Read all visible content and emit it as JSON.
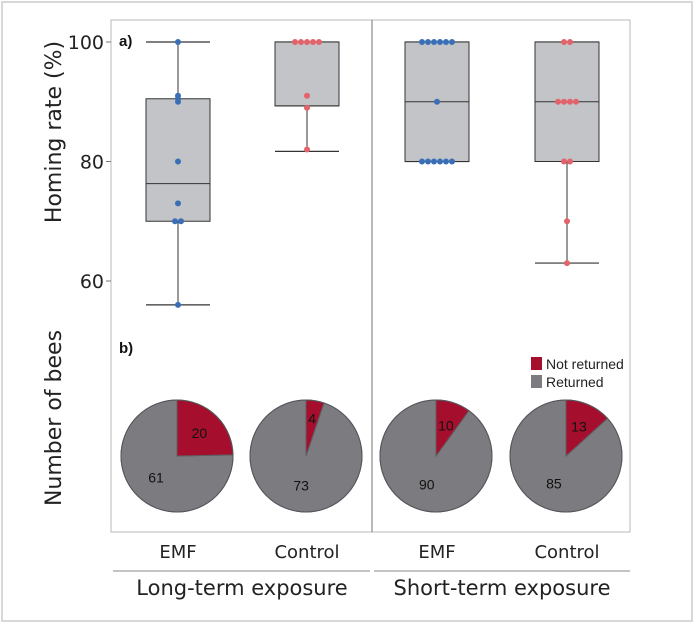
{
  "chart_data": [
    {
      "panel": "a)",
      "type": "box",
      "ylabel": "Homing rate (%)",
      "yticks": [
        60,
        80,
        100
      ],
      "ylim": [
        53,
        103
      ],
      "categories": [
        "EMF",
        "Control",
        "EMF",
        "Control"
      ],
      "groups": [
        "Long-term exposure",
        "Short-term exposure"
      ],
      "boxes": [
        {
          "group": "Long-term exposure",
          "category": "EMF",
          "whisker_low": 56,
          "q1": 70,
          "median": 76.3,
          "q3": 90.5,
          "whisker_high": 100,
          "color": "#3a6fb6",
          "points": [
            100,
            91,
            90.5,
            90,
            80,
            73,
            70,
            70,
            56
          ]
        },
        {
          "group": "Long-term exposure",
          "category": "Control",
          "whisker_low": 81.7,
          "q1": 89.3,
          "median": 89.3,
          "q3": 100,
          "whisker_high": 100,
          "color": "#e2636b",
          "points": [
            100,
            100,
            100,
            100,
            100,
            91,
            89,
            82
          ]
        },
        {
          "group": "Short-term exposure",
          "category": "EMF",
          "whisker_low": 80,
          "q1": 80,
          "median": 90,
          "q3": 100,
          "whisker_high": 100,
          "color": "#3a6fb6",
          "points": [
            100,
            100,
            100,
            100,
            100,
            100,
            90,
            80,
            80,
            80,
            80,
            80,
            80
          ]
        },
        {
          "group": "Short-term exposure",
          "category": "Control",
          "whisker_low": 63,
          "q1": 80,
          "median": 90,
          "q3": 100,
          "whisker_high": 100,
          "color": "#e2636b",
          "points": [
            100,
            100,
            90,
            90,
            90,
            90,
            80,
            80,
            70,
            63
          ]
        }
      ],
      "box_fill": "#c3c4c8"
    },
    {
      "panel": "b)",
      "type": "pie",
      "ylabel": "Number of bees",
      "legend": [
        {
          "label": "Not returned",
          "color": "#a50f2d"
        },
        {
          "label": "Returned",
          "color": "#7c7c80"
        }
      ],
      "legend_position": "top-right",
      "pies": [
        {
          "group": "Long-term exposure",
          "category": "EMF",
          "not_returned": 20,
          "returned": 61
        },
        {
          "group": "Long-term exposure",
          "category": "Control",
          "not_returned": 4,
          "returned": 73
        },
        {
          "group": "Short-term exposure",
          "category": "EMF",
          "not_returned": 10,
          "returned": 90
        },
        {
          "group": "Short-term exposure",
          "category": "Control",
          "not_returned": 13,
          "returned": 85
        }
      ]
    }
  ]
}
